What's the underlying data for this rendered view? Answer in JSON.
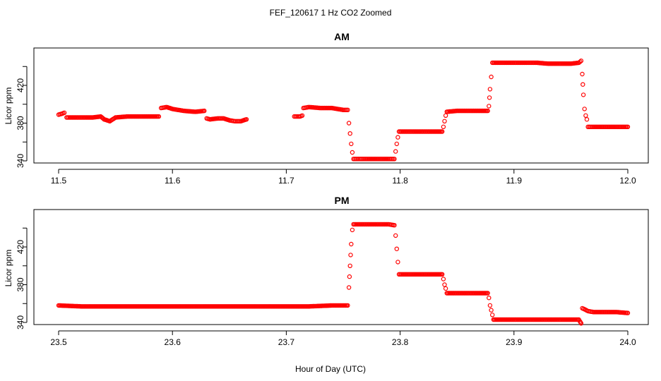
{
  "title": "FEF_120617  1 Hz CO2 Zoomed",
  "xlabel": "Hour of Day (UTC)",
  "colors": {
    "points": "#ff0000",
    "axes": "#000000"
  },
  "chart_data": [
    {
      "type": "scatter",
      "title": "AM",
      "ylabel": "Licor ppm",
      "xlim": [
        11.5,
        12.0
      ],
      "ylim": [
        340,
        450
      ],
      "x_ticks": [
        "11.5",
        "11.6",
        "11.7",
        "11.8",
        "11.9",
        "12.0"
      ],
      "y_ticks": [
        "340",
        "380",
        "420"
      ],
      "marker": "open-circle",
      "segments": [
        {
          "x": [
            11.5,
            11.503,
            11.505,
            11.507,
            11.51,
            11.52,
            11.53,
            11.537,
            11.54,
            11.545,
            11.55,
            11.56,
            11.57,
            11.58,
            11.588
          ],
          "y": [
            389,
            390,
            391,
            386,
            386,
            386,
            386,
            387,
            384,
            382,
            386,
            387,
            387,
            387,
            387
          ]
        },
        {
          "x": [
            11.59,
            11.595,
            11.6,
            11.61,
            11.62,
            11.628
          ],
          "y": [
            396,
            397,
            395,
            393,
            392,
            393
          ]
        },
        {
          "x": [
            11.63,
            11.633,
            11.64,
            11.645,
            11.65,
            11.655,
            11.66,
            11.665
          ],
          "y": [
            385,
            384,
            385,
            385,
            383,
            382,
            382,
            384
          ]
        },
        {
          "x": [
            11.707,
            11.712,
            11.714
          ],
          "y": [
            387,
            387,
            388
          ]
        },
        {
          "x": [
            11.715,
            11.72,
            11.73,
            11.74,
            11.75,
            11.754
          ],
          "y": [
            396,
            397,
            396,
            396,
            394,
            394
          ]
        },
        {
          "x": [
            11.755,
            11.756,
            11.757,
            11.758
          ],
          "y": [
            380,
            369,
            358,
            349
          ]
        },
        {
          "x": [
            11.759,
            11.765,
            11.77,
            11.78,
            11.79,
            11.795
          ],
          "y": [
            342,
            342,
            342,
            342,
            342,
            342
          ]
        },
        {
          "x": [
            11.796,
            11.797,
            11.798
          ],
          "y": [
            350,
            358,
            365
          ]
        },
        {
          "x": [
            11.799,
            11.81,
            11.82,
            11.83,
            11.837
          ],
          "y": [
            371,
            371,
            371,
            371,
            371
          ]
        },
        {
          "x": [
            11.838,
            11.839,
            11.84
          ],
          "y": [
            376,
            382,
            388
          ]
        },
        {
          "x": [
            11.841,
            11.85,
            11.86,
            11.87,
            11.877
          ],
          "y": [
            392,
            393,
            393,
            393,
            393
          ]
        },
        {
          "x": [
            11.878,
            11.879,
            11.88
          ],
          "y": [
            398,
            416,
            429
          ]
        },
        {
          "x": [
            11.881,
            11.89,
            11.9,
            11.91,
            11.92,
            11.93,
            11.94,
            11.95,
            11.957,
            11.959
          ],
          "y": [
            444,
            444,
            444,
            444,
            444,
            443,
            443,
            443,
            444,
            446
          ]
        },
        {
          "x": [
            11.96,
            11.961,
            11.962,
            11.963,
            11.964
          ],
          "y": [
            432,
            410,
            395,
            388,
            384
          ]
        },
        {
          "x": [
            11.965,
            11.97,
            11.98,
            11.99,
            12.0
          ],
          "y": [
            376,
            376,
            376,
            376,
            376
          ]
        }
      ]
    },
    {
      "type": "scatter",
      "title": "PM",
      "ylabel": "Licor ppm",
      "xlim": [
        23.5,
        24.0
      ],
      "ylim": [
        340,
        450
      ],
      "x_ticks": [
        "23.5",
        "23.6",
        "23.7",
        "23.8",
        "23.9",
        "24.0"
      ],
      "y_ticks": [
        "340",
        "380",
        "420"
      ],
      "marker": "open-circle",
      "segments": [
        {
          "x": [
            23.5,
            23.52,
            23.54,
            23.56,
            23.58,
            23.6,
            23.62,
            23.64,
            23.66,
            23.68,
            23.7,
            23.72,
            23.74,
            23.754
          ],
          "y": [
            358,
            357,
            357,
            357,
            357,
            357,
            357,
            357,
            357,
            357,
            357,
            357,
            358,
            358
          ]
        },
        {
          "x": [
            23.755,
            23.756,
            23.757,
            23.758
          ],
          "y": [
            377,
            400,
            423,
            438
          ]
        },
        {
          "x": [
            23.759,
            23.77,
            23.78,
            23.79,
            23.795
          ],
          "y": [
            444,
            444,
            444,
            444,
            443
          ]
        },
        {
          "x": [
            23.796,
            23.797,
            23.798
          ],
          "y": [
            432,
            418,
            404
          ]
        },
        {
          "x": [
            23.799,
            23.81,
            23.82,
            23.83,
            23.837
          ],
          "y": [
            391,
            391,
            391,
            391,
            391
          ]
        },
        {
          "x": [
            23.838,
            23.839,
            23.84
          ],
          "y": [
            386,
            380,
            376
          ]
        },
        {
          "x": [
            23.841,
            23.85,
            23.86,
            23.87,
            23.877
          ],
          "y": [
            371,
            371,
            371,
            371,
            371
          ]
        },
        {
          "x": [
            23.878,
            23.879,
            23.88,
            23.881
          ],
          "y": [
            366,
            358,
            353,
            348
          ]
        },
        {
          "x": [
            23.882,
            23.89,
            23.9,
            23.91,
            23.92,
            23.93,
            23.94,
            23.95,
            23.957
          ],
          "y": [
            343,
            343,
            343,
            343,
            343,
            343,
            343,
            343,
            343
          ]
        },
        {
          "x": [
            23.958,
            23.959
          ],
          "y": [
            341,
            339
          ]
        },
        {
          "x": [
            23.96,
            23.962,
            23.965,
            23.97,
            23.98,
            23.99,
            24.0
          ],
          "y": [
            355,
            354,
            352,
            351,
            351,
            351,
            350
          ]
        }
      ]
    }
  ]
}
